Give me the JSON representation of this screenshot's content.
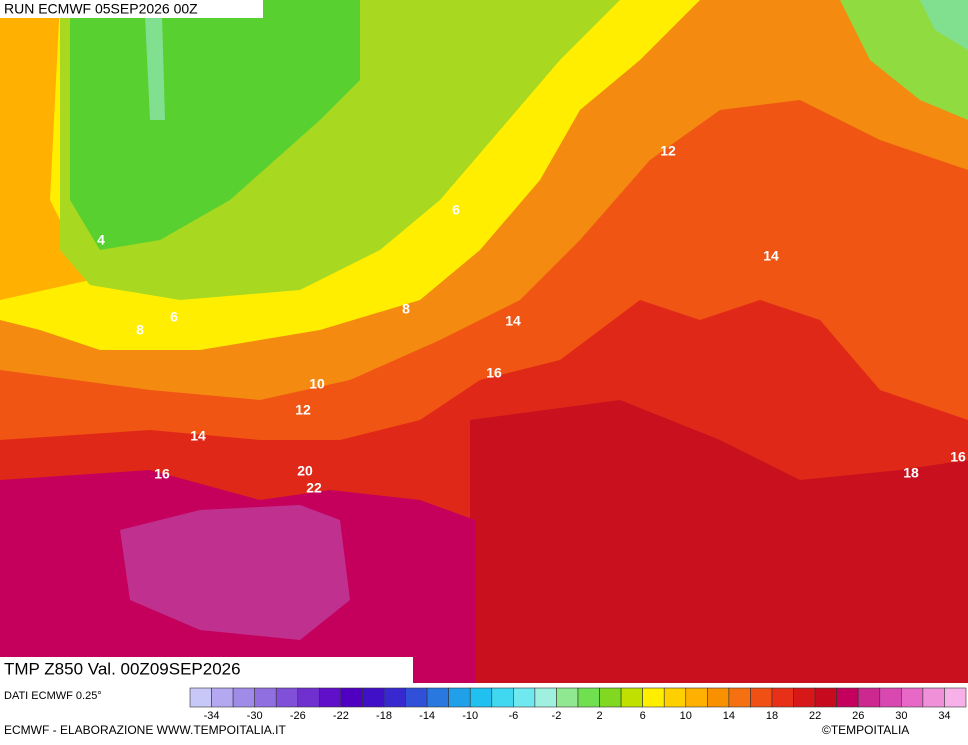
{
  "header": {
    "run": "RUN ECMWF 05SEP2026 00Z"
  },
  "map": {
    "contour_labels": [
      12,
      6,
      4,
      14,
      8,
      6,
      8,
      14,
      16,
      10,
      12,
      14,
      16,
      20,
      22,
      18,
      16
    ]
  },
  "info": {
    "title": "TMP Z850 Val. 00Z09SEP2026"
  },
  "legend": {
    "source": "DATI ECMWF 0.25°",
    "ticks": [
      -34,
      -30,
      -26,
      -22,
      -18,
      -14,
      -10,
      -6,
      -2,
      2,
      6,
      10,
      14,
      18,
      22,
      26,
      30,
      34
    ],
    "colors": [
      "#c8c8f8",
      "#b4a8f0",
      "#a08ce8",
      "#9070e0",
      "#8050d8",
      "#7030d0",
      "#6010c8",
      "#5000c0",
      "#4010c8",
      "#3828d0",
      "#3050d8",
      "#2878e0",
      "#20a0e8",
      "#20c0f0",
      "#40d8f0",
      "#70e8f0",
      "#a0f0e0",
      "#90e890",
      "#70e050",
      "#80d820",
      "#c0e000",
      "#ffee00",
      "#ffd000",
      "#ffb000",
      "#f89000",
      "#f47010",
      "#f05014",
      "#e83018",
      "#d81818",
      "#c80a1e",
      "#c4005c",
      "#cc2890",
      "#d848b0",
      "#e868c8",
      "#f090d8",
      "#f8b0e8"
    ]
  },
  "footer": {
    "credit": "ECMWF - ELABORAZIONE WWW.TEMPOITALIA.IT",
    "copyright": "©TEMPOITALIA"
  }
}
